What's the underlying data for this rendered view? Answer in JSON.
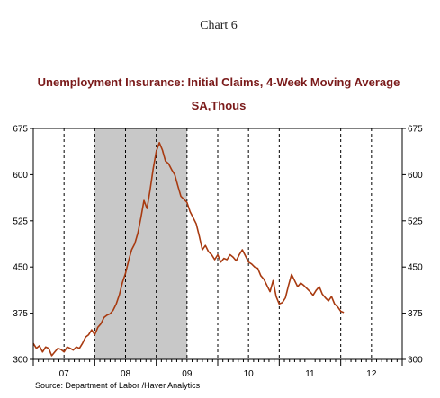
{
  "chart_number_label": "Chart 6",
  "source": "Source:  Department of Labor /Haver Analytics",
  "chart_data": {
    "type": "line",
    "title": "Unemployment Insurance: Initial Claims, 4-Week Moving Average",
    "subtitle": "SA,Thous",
    "xlabel": "",
    "ylabel": "",
    "x_tick_labels": [
      "07",
      "08",
      "09",
      "10",
      "11",
      "12"
    ],
    "x_range": [
      2007.0,
      2013.0
    ],
    "ylim": [
      300,
      675
    ],
    "y_ticks": [
      300,
      375,
      450,
      525,
      600,
      675
    ],
    "y_tick_labels": [
      "300",
      "375",
      "450",
      "525",
      "600",
      "675"
    ],
    "grid": "vertical dashed at year boundaries and mid-year",
    "shaded_regions": [
      {
        "start": 2008.0,
        "end": 2009.5,
        "color": "#c8c8c8",
        "meaning": "recession"
      }
    ],
    "series": [
      {
        "color": "#a83a10",
        "x": [
          2007.0,
          2007.05,
          2007.1,
          2007.15,
          2007.2,
          2007.25,
          2007.3,
          2007.35,
          2007.4,
          2007.45,
          2007.5,
          2007.55,
          2007.6,
          2007.65,
          2007.7,
          2007.75,
          2007.8,
          2007.85,
          2007.9,
          2007.95,
          2008.0,
          2008.05,
          2008.1,
          2008.15,
          2008.2,
          2008.25,
          2008.3,
          2008.35,
          2008.4,
          2008.45,
          2008.5,
          2008.55,
          2008.6,
          2008.65,
          2008.7,
          2008.75,
          2008.8,
          2008.85,
          2008.9,
          2008.95,
          2009.0,
          2009.05,
          2009.1,
          2009.15,
          2009.2,
          2009.25,
          2009.3,
          2009.35,
          2009.4,
          2009.45,
          2009.5,
          2009.55,
          2009.6,
          2009.65,
          2009.7,
          2009.75,
          2009.8,
          2009.85,
          2009.9,
          2009.95,
          2010.0,
          2010.05,
          2010.1,
          2010.15,
          2010.2,
          2010.25,
          2010.3,
          2010.35,
          2010.4,
          2010.45,
          2010.5,
          2010.55,
          2010.6,
          2010.65,
          2010.7,
          2010.75,
          2010.8,
          2010.85,
          2010.9,
          2010.95,
          2011.0,
          2011.05,
          2011.1,
          2011.15,
          2011.2,
          2011.25,
          2011.3,
          2011.35,
          2011.4,
          2011.45,
          2011.5,
          2011.55,
          2011.6,
          2011.65,
          2011.7,
          2011.75,
          2011.8,
          2011.85,
          2011.9,
          2011.95,
          2012.0,
          2012.05
        ],
        "values": [
          326,
          318,
          322,
          312,
          320,
          318,
          306,
          312,
          318,
          316,
          312,
          320,
          318,
          315,
          320,
          318,
          326,
          336,
          340,
          348,
          340,
          352,
          358,
          368,
          372,
          374,
          380,
          390,
          405,
          425,
          440,
          460,
          478,
          488,
          505,
          530,
          558,
          545,
          575,
          610,
          638,
          652,
          640,
          622,
          618,
          608,
          600,
          582,
          565,
          560,
          555,
          540,
          530,
          520,
          500,
          478,
          485,
          475,
          470,
          462,
          470,
          458,
          464,
          462,
          470,
          466,
          460,
          470,
          478,
          468,
          458,
          455,
          450,
          448,
          436,
          430,
          420,
          410,
          428,
          402,
          390,
          392,
          400,
          420,
          438,
          428,
          418,
          424,
          420,
          415,
          410,
          404,
          412,
          418,
          406,
          400,
          395,
          402,
          390,
          385,
          378,
          376
        ]
      }
    ]
  }
}
